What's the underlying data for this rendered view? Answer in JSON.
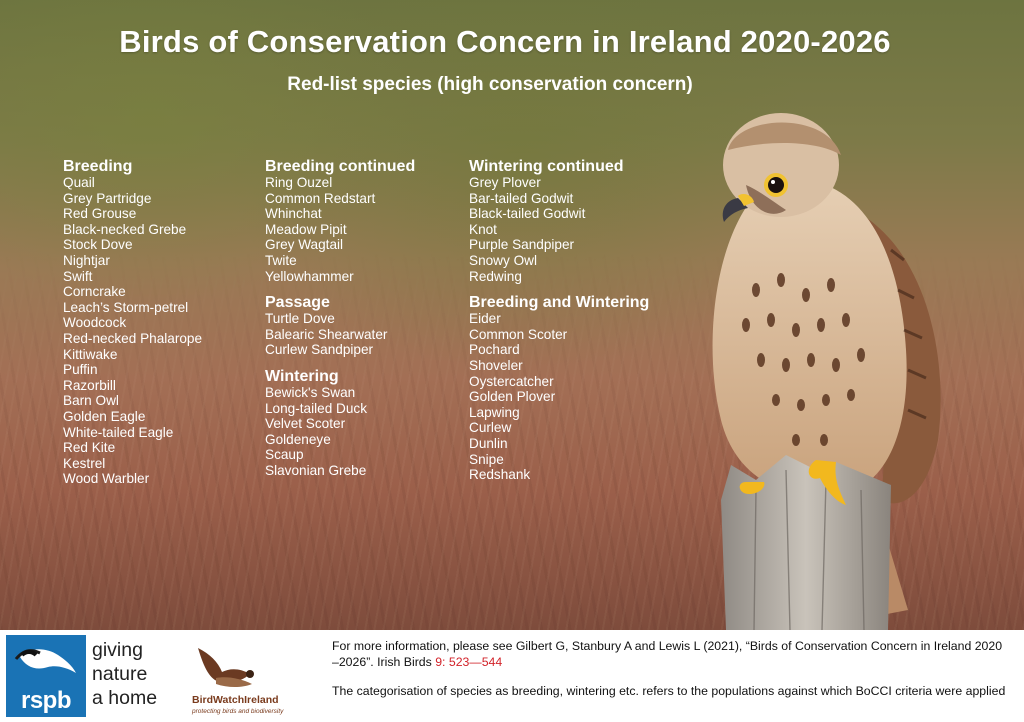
{
  "header": {
    "title": "Birds of Conservation Concern in Ireland 2020-2026",
    "subtitle": "Red-list species (high conservation concern)"
  },
  "columns": [
    {
      "sections": [
        {
          "heading": "Breeding",
          "species": [
            "Quail",
            "Grey Partridge",
            "Red Grouse",
            "Black-necked Grebe",
            "Stock Dove",
            "Nightjar",
            "Swift",
            "Corncrake",
            "Leach’s Storm-petrel",
            "Woodcock",
            "Red-necked Phalarope",
            "Kittiwake",
            "Puffin",
            "Razorbill",
            "Barn Owl",
            "Golden Eagle",
            "White-tailed Eagle",
            "Red Kite",
            "Kestrel",
            "Wood Warbler"
          ]
        }
      ]
    },
    {
      "sections": [
        {
          "heading": "Breeding continued",
          "species": [
            "Ring Ouzel",
            "Common Redstart",
            "Whinchat",
            "Meadow Pipit",
            "Grey Wagtail",
            "Twite",
            "Yellowhammer"
          ]
        },
        {
          "heading": "Passage",
          "species": [
            "Turtle Dove",
            "Balearic Shearwater",
            "Curlew Sandpiper"
          ]
        },
        {
          "heading": "Wintering",
          "species": [
            "Bewick's Swan",
            "Long-tailed Duck",
            "Velvet Scoter",
            "Goldeneye",
            "Scaup",
            "Slavonian Grebe"
          ]
        }
      ]
    },
    {
      "sections": [
        {
          "heading": "Wintering continued",
          "species": [
            "Grey Plover",
            "Bar-tailed Godwit",
            "Black-tailed Godwit",
            "Knot",
            "Purple Sandpiper",
            "Snowy Owl",
            "Redwing"
          ]
        },
        {
          "heading": "Breeding and Wintering",
          "species": [
            "Eider",
            "Common Scoter",
            "Pochard",
            "Shoveler",
            "Oystercatcher",
            "Golden Plover",
            "Lapwing",
            "Curlew",
            "Dunlin",
            "Snipe",
            "Redshank"
          ]
        }
      ]
    }
  ],
  "footer": {
    "rspb": {
      "wordmark": "rspb",
      "slogan": [
        "giving",
        "nature",
        "a home"
      ],
      "color": "#1a73b5"
    },
    "birdwatch": {
      "name": "BirdWatchIreland",
      "tagline": "protecting birds and biodiversity"
    },
    "info": {
      "text_before": "For more information, please see Gilbert G, Stanbury A and Lewis L (2021), “Birds of Conservation Concern in Ireland 2020 –2026”. Irish Birds ",
      "reference": "9: 523—544",
      "note": "The categorisation of species as breeding, wintering etc. refers to the populations against which BoCCI criteria were applied"
    }
  },
  "colors": {
    "reference_red": "#d2232a",
    "title_text": "#ffffff"
  }
}
